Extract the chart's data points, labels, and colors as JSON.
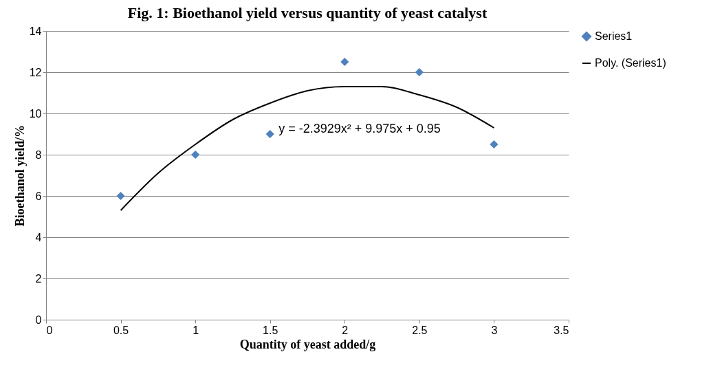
{
  "chart_data": {
    "type": "scatter",
    "title": "Fig. 1: Bioethanol yield versus quantity of yeast catalyst",
    "xlabel": "Quantity of yeast added/g",
    "ylabel": "Bioethanol yield/%",
    "x": [
      0.5,
      1,
      1.5,
      2,
      2.5,
      3
    ],
    "series": [
      {
        "name": "Series1",
        "color": "#4f81bd",
        "marker": "diamond",
        "values": [
          6,
          8,
          9,
          12.5,
          12,
          8.5
        ]
      },
      {
        "name": "Poly. (Series1)",
        "type": "line",
        "color": "#000000",
        "x": [
          0.5,
          0.75,
          1,
          1.25,
          1.5,
          1.75,
          2,
          2.25,
          2.5,
          2.75,
          3
        ],
        "values": [
          5.3,
          7.1,
          8.5,
          9.7,
          10.5,
          11.1,
          11.3,
          11.3,
          10.9,
          10.3,
          9.3
        ]
      }
    ],
    "xlim": [
      0,
      3.5
    ],
    "xticks": [
      0,
      0.5,
      1,
      1.5,
      2,
      2.5,
      3,
      3.5
    ],
    "ylim": [
      0,
      14
    ],
    "yticks": [
      0,
      2,
      4,
      6,
      8,
      10,
      12,
      14
    ],
    "grid": "y",
    "legend": "right",
    "line_style": "solid",
    "annotations": [
      "y = -2.3929x² + 9.975x + 0.95"
    ]
  }
}
